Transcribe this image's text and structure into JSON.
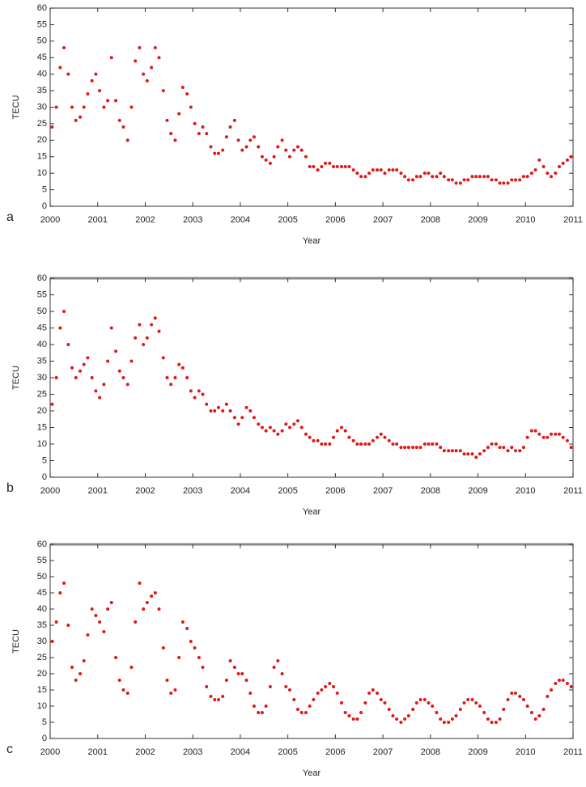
{
  "chart_data": [
    {
      "type": "scatter",
      "panel_label": "a",
      "ylabel": "TECU",
      "xlabel": "Year",
      "color": "#e01818",
      "xlim": [
        2000,
        2011
      ],
      "xticks": [
        2000,
        2001,
        2002,
        2003,
        2004,
        2005,
        2006,
        2007,
        2008,
        2009,
        2010,
        2011
      ],
      "ylim": [
        0,
        60
      ],
      "yticks": [
        0,
        5,
        10,
        15,
        20,
        25,
        30,
        35,
        40,
        45,
        50,
        55,
        60
      ],
      "x": [
        2000.04,
        2000.13,
        2000.21,
        2000.29,
        2000.38,
        2000.46,
        2000.54,
        2000.63,
        2000.71,
        2000.79,
        2000.88,
        2000.96,
        2001.04,
        2001.13,
        2001.21,
        2001.29,
        2001.38,
        2001.46,
        2001.54,
        2001.63,
        2001.71,
        2001.79,
        2001.88,
        2001.96,
        2002.04,
        2002.13,
        2002.21,
        2002.29,
        2002.38,
        2002.46,
        2002.54,
        2002.63,
        2002.71,
        2002.79,
        2002.88,
        2002.96,
        2003.04,
        2003.13,
        2003.21,
        2003.29,
        2003.38,
        2003.46,
        2003.54,
        2003.63,
        2003.71,
        2003.79,
        2003.88,
        2003.96,
        2004.04,
        2004.13,
        2004.21,
        2004.29,
        2004.38,
        2004.46,
        2004.54,
        2004.63,
        2004.71,
        2004.79,
        2004.88,
        2004.96,
        2005.04,
        2005.13,
        2005.21,
        2005.29,
        2005.38,
        2005.46,
        2005.54,
        2005.63,
        2005.71,
        2005.79,
        2005.88,
        2005.96,
        2006.04,
        2006.13,
        2006.21,
        2006.29,
        2006.38,
        2006.46,
        2006.54,
        2006.63,
        2006.71,
        2006.79,
        2006.88,
        2006.96,
        2007.04,
        2007.13,
        2007.21,
        2007.29,
        2007.38,
        2007.46,
        2007.54,
        2007.63,
        2007.71,
        2007.79,
        2007.88,
        2007.96,
        2008.04,
        2008.13,
        2008.21,
        2008.29,
        2008.38,
        2008.46,
        2008.54,
        2008.63,
        2008.71,
        2008.79,
        2008.88,
        2008.96,
        2009.04,
        2009.13,
        2009.21,
        2009.29,
        2009.38,
        2009.46,
        2009.54,
        2009.63,
        2009.71,
        2009.79,
        2009.88,
        2009.96,
        2010.04,
        2010.13,
        2010.21,
        2010.29,
        2010.38,
        2010.46,
        2010.54,
        2010.63,
        2010.71,
        2010.79,
        2010.88,
        2010.96
      ],
      "values": [
        24,
        30,
        42,
        48,
        40,
        30,
        26,
        27,
        30,
        34,
        38,
        40,
        35,
        30,
        32,
        45,
        32,
        26,
        24,
        20,
        30,
        44,
        48,
        40,
        38,
        42,
        48,
        45,
        35,
        26,
        22,
        20,
        28,
        36,
        34,
        30,
        25,
        22,
        24,
        22,
        18,
        16,
        16,
        17,
        21,
        24,
        26,
        20,
        17,
        18,
        20,
        21,
        18,
        15,
        14,
        13,
        15,
        18,
        20,
        17,
        15,
        17,
        18,
        17,
        15,
        12,
        12,
        11,
        12,
        13,
        13,
        12,
        12,
        12,
        12,
        12,
        11,
        10,
        9,
        9,
        10,
        11,
        11,
        11,
        10,
        11,
        11,
        11,
        10,
        9,
        8,
        8,
        9,
        9,
        10,
        10,
        9,
        9,
        10,
        9,
        8,
        8,
        7,
        7,
        8,
        8,
        9,
        9,
        9,
        9,
        9,
        8,
        8,
        7,
        7,
        7,
        8,
        8,
        8,
        9,
        9,
        10,
        11,
        14,
        12,
        10,
        9,
        10,
        12,
        13,
        14,
        15
      ]
    },
    {
      "type": "scatter",
      "panel_label": "b",
      "ylabel": "TECU",
      "xlabel": "Year",
      "color": "#e01818",
      "xlim": [
        2000,
        2011
      ],
      "xticks": [
        2000,
        2001,
        2002,
        2003,
        2004,
        2005,
        2006,
        2007,
        2008,
        2009,
        2010,
        2011
      ],
      "ylim": [
        0,
        60
      ],
      "yticks": [
        0,
        5,
        10,
        15,
        20,
        25,
        30,
        35,
        40,
        45,
        50,
        55,
        60
      ],
      "x": [
        2000.04,
        2000.13,
        2000.21,
        2000.29,
        2000.38,
        2000.46,
        2000.54,
        2000.63,
        2000.71,
        2000.79,
        2000.88,
        2000.96,
        2001.04,
        2001.13,
        2001.21,
        2001.29,
        2001.38,
        2001.46,
        2001.54,
        2001.63,
        2001.71,
        2001.79,
        2001.88,
        2001.96,
        2002.04,
        2002.13,
        2002.21,
        2002.29,
        2002.38,
        2002.46,
        2002.54,
        2002.63,
        2002.71,
        2002.79,
        2002.88,
        2002.96,
        2003.04,
        2003.13,
        2003.21,
        2003.29,
        2003.38,
        2003.46,
        2003.54,
        2003.63,
        2003.71,
        2003.79,
        2003.88,
        2003.96,
        2004.04,
        2004.13,
        2004.21,
        2004.29,
        2004.38,
        2004.46,
        2004.54,
        2004.63,
        2004.71,
        2004.79,
        2004.88,
        2004.96,
        2005.04,
        2005.13,
        2005.21,
        2005.29,
        2005.38,
        2005.46,
        2005.54,
        2005.63,
        2005.71,
        2005.79,
        2005.88,
        2005.96,
        2006.04,
        2006.13,
        2006.21,
        2006.29,
        2006.38,
        2006.46,
        2006.54,
        2006.63,
        2006.71,
        2006.79,
        2006.88,
        2006.96,
        2007.04,
        2007.13,
        2007.21,
        2007.29,
        2007.38,
        2007.46,
        2007.54,
        2007.63,
        2007.71,
        2007.79,
        2007.88,
        2007.96,
        2008.04,
        2008.13,
        2008.21,
        2008.29,
        2008.38,
        2008.46,
        2008.54,
        2008.63,
        2008.71,
        2008.79,
        2008.88,
        2008.96,
        2009.04,
        2009.13,
        2009.21,
        2009.29,
        2009.38,
        2009.46,
        2009.54,
        2009.63,
        2009.71,
        2009.79,
        2009.88,
        2009.96,
        2010.04,
        2010.13,
        2010.21,
        2010.29,
        2010.38,
        2010.46,
        2010.54,
        2010.63,
        2010.71,
        2010.79,
        2010.88,
        2010.96
      ],
      "values": [
        22,
        30,
        45,
        50,
        40,
        33,
        30,
        32,
        34,
        36,
        30,
        26,
        24,
        28,
        35,
        45,
        38,
        32,
        30,
        28,
        35,
        42,
        46,
        40,
        42,
        46,
        48,
        44,
        36,
        30,
        28,
        30,
        34,
        33,
        30,
        26,
        24,
        26,
        25,
        22,
        20,
        20,
        21,
        20,
        22,
        20,
        18,
        16,
        18,
        21,
        20,
        18,
        16,
        15,
        14,
        15,
        14,
        13,
        14,
        16,
        15,
        16,
        17,
        15,
        13,
        12,
        11,
        11,
        10,
        10,
        10,
        12,
        14,
        15,
        14,
        12,
        11,
        10,
        10,
        10,
        10,
        11,
        12,
        13,
        12,
        11,
        10,
        10,
        9,
        9,
        9,
        9,
        9,
        9,
        10,
        10,
        10,
        10,
        9,
        8,
        8,
        8,
        8,
        8,
        7,
        7,
        7,
        6,
        7,
        8,
        9,
        10,
        10,
        9,
        9,
        8,
        9,
        8,
        8,
        9,
        12,
        14,
        14,
        13,
        12,
        12,
        13,
        13,
        13,
        12,
        11,
        9
      ]
    },
    {
      "type": "scatter",
      "panel_label": "c",
      "ylabel": "TECU",
      "xlabel": "Year",
      "color": "#e01818",
      "xlim": [
        2000,
        2011
      ],
      "xticks": [
        2000,
        2001,
        2002,
        2003,
        2004,
        2005,
        2006,
        2007,
        2008,
        2009,
        2010,
        2011
      ],
      "ylim": [
        0,
        60
      ],
      "yticks": [
        0,
        5,
        10,
        15,
        20,
        25,
        30,
        35,
        40,
        45,
        50,
        55,
        60
      ],
      "x": [
        2000.04,
        2000.13,
        2000.21,
        2000.29,
        2000.38,
        2000.46,
        2000.54,
        2000.63,
        2000.71,
        2000.79,
        2000.88,
        2000.96,
        2001.04,
        2001.13,
        2001.21,
        2001.29,
        2001.38,
        2001.46,
        2001.54,
        2001.63,
        2001.71,
        2001.79,
        2001.88,
        2001.96,
        2002.04,
        2002.13,
        2002.21,
        2002.29,
        2002.38,
        2002.46,
        2002.54,
        2002.63,
        2002.71,
        2002.79,
        2002.88,
        2002.96,
        2003.04,
        2003.13,
        2003.21,
        2003.29,
        2003.38,
        2003.46,
        2003.54,
        2003.63,
        2003.71,
        2003.79,
        2003.88,
        2003.96,
        2004.04,
        2004.13,
        2004.21,
        2004.29,
        2004.38,
        2004.46,
        2004.54,
        2004.63,
        2004.71,
        2004.79,
        2004.88,
        2004.96,
        2005.04,
        2005.13,
        2005.21,
        2005.29,
        2005.38,
        2005.46,
        2005.54,
        2005.63,
        2005.71,
        2005.79,
        2005.88,
        2005.96,
        2006.04,
        2006.13,
        2006.21,
        2006.29,
        2006.38,
        2006.46,
        2006.54,
        2006.63,
        2006.71,
        2006.79,
        2006.88,
        2006.96,
        2007.04,
        2007.13,
        2007.21,
        2007.29,
        2007.38,
        2007.46,
        2007.54,
        2007.63,
        2007.71,
        2007.79,
        2007.88,
        2007.96,
        2008.04,
        2008.13,
        2008.21,
        2008.29,
        2008.38,
        2008.46,
        2008.54,
        2008.63,
        2008.71,
        2008.79,
        2008.88,
        2008.96,
        2009.04,
        2009.13,
        2009.21,
        2009.29,
        2009.38,
        2009.46,
        2009.54,
        2009.63,
        2009.71,
        2009.79,
        2009.88,
        2009.96,
        2010.04,
        2010.13,
        2010.21,
        2010.29,
        2010.38,
        2010.46,
        2010.54,
        2010.63,
        2010.71,
        2010.79,
        2010.88,
        2010.96
      ],
      "values": [
        30,
        36,
        45,
        48,
        35,
        22,
        18,
        20,
        24,
        32,
        40,
        38,
        36,
        33,
        40,
        42,
        25,
        18,
        15,
        14,
        22,
        36,
        48,
        40,
        42,
        44,
        45,
        40,
        28,
        18,
        14,
        15,
        25,
        36,
        34,
        30,
        28,
        25,
        22,
        16,
        13,
        12,
        12,
        13,
        18,
        24,
        22,
        20,
        20,
        18,
        14,
        10,
        8,
        8,
        10,
        16,
        22,
        24,
        20,
        16,
        15,
        12,
        9,
        8,
        8,
        10,
        12,
        14,
        15,
        16,
        17,
        16,
        14,
        11,
        8,
        7,
        6,
        6,
        8,
        11,
        14,
        15,
        14,
        12,
        11,
        9,
        7,
        6,
        5,
        6,
        7,
        9,
        11,
        12,
        12,
        11,
        10,
        8,
        6,
        5,
        5,
        6,
        7,
        9,
        11,
        12,
        12,
        11,
        10,
        8,
        6,
        5,
        5,
        6,
        9,
        12,
        14,
        14,
        13,
        12,
        10,
        8,
        6,
        7,
        9,
        13,
        15,
        17,
        18,
        18,
        17,
        16
      ]
    }
  ]
}
